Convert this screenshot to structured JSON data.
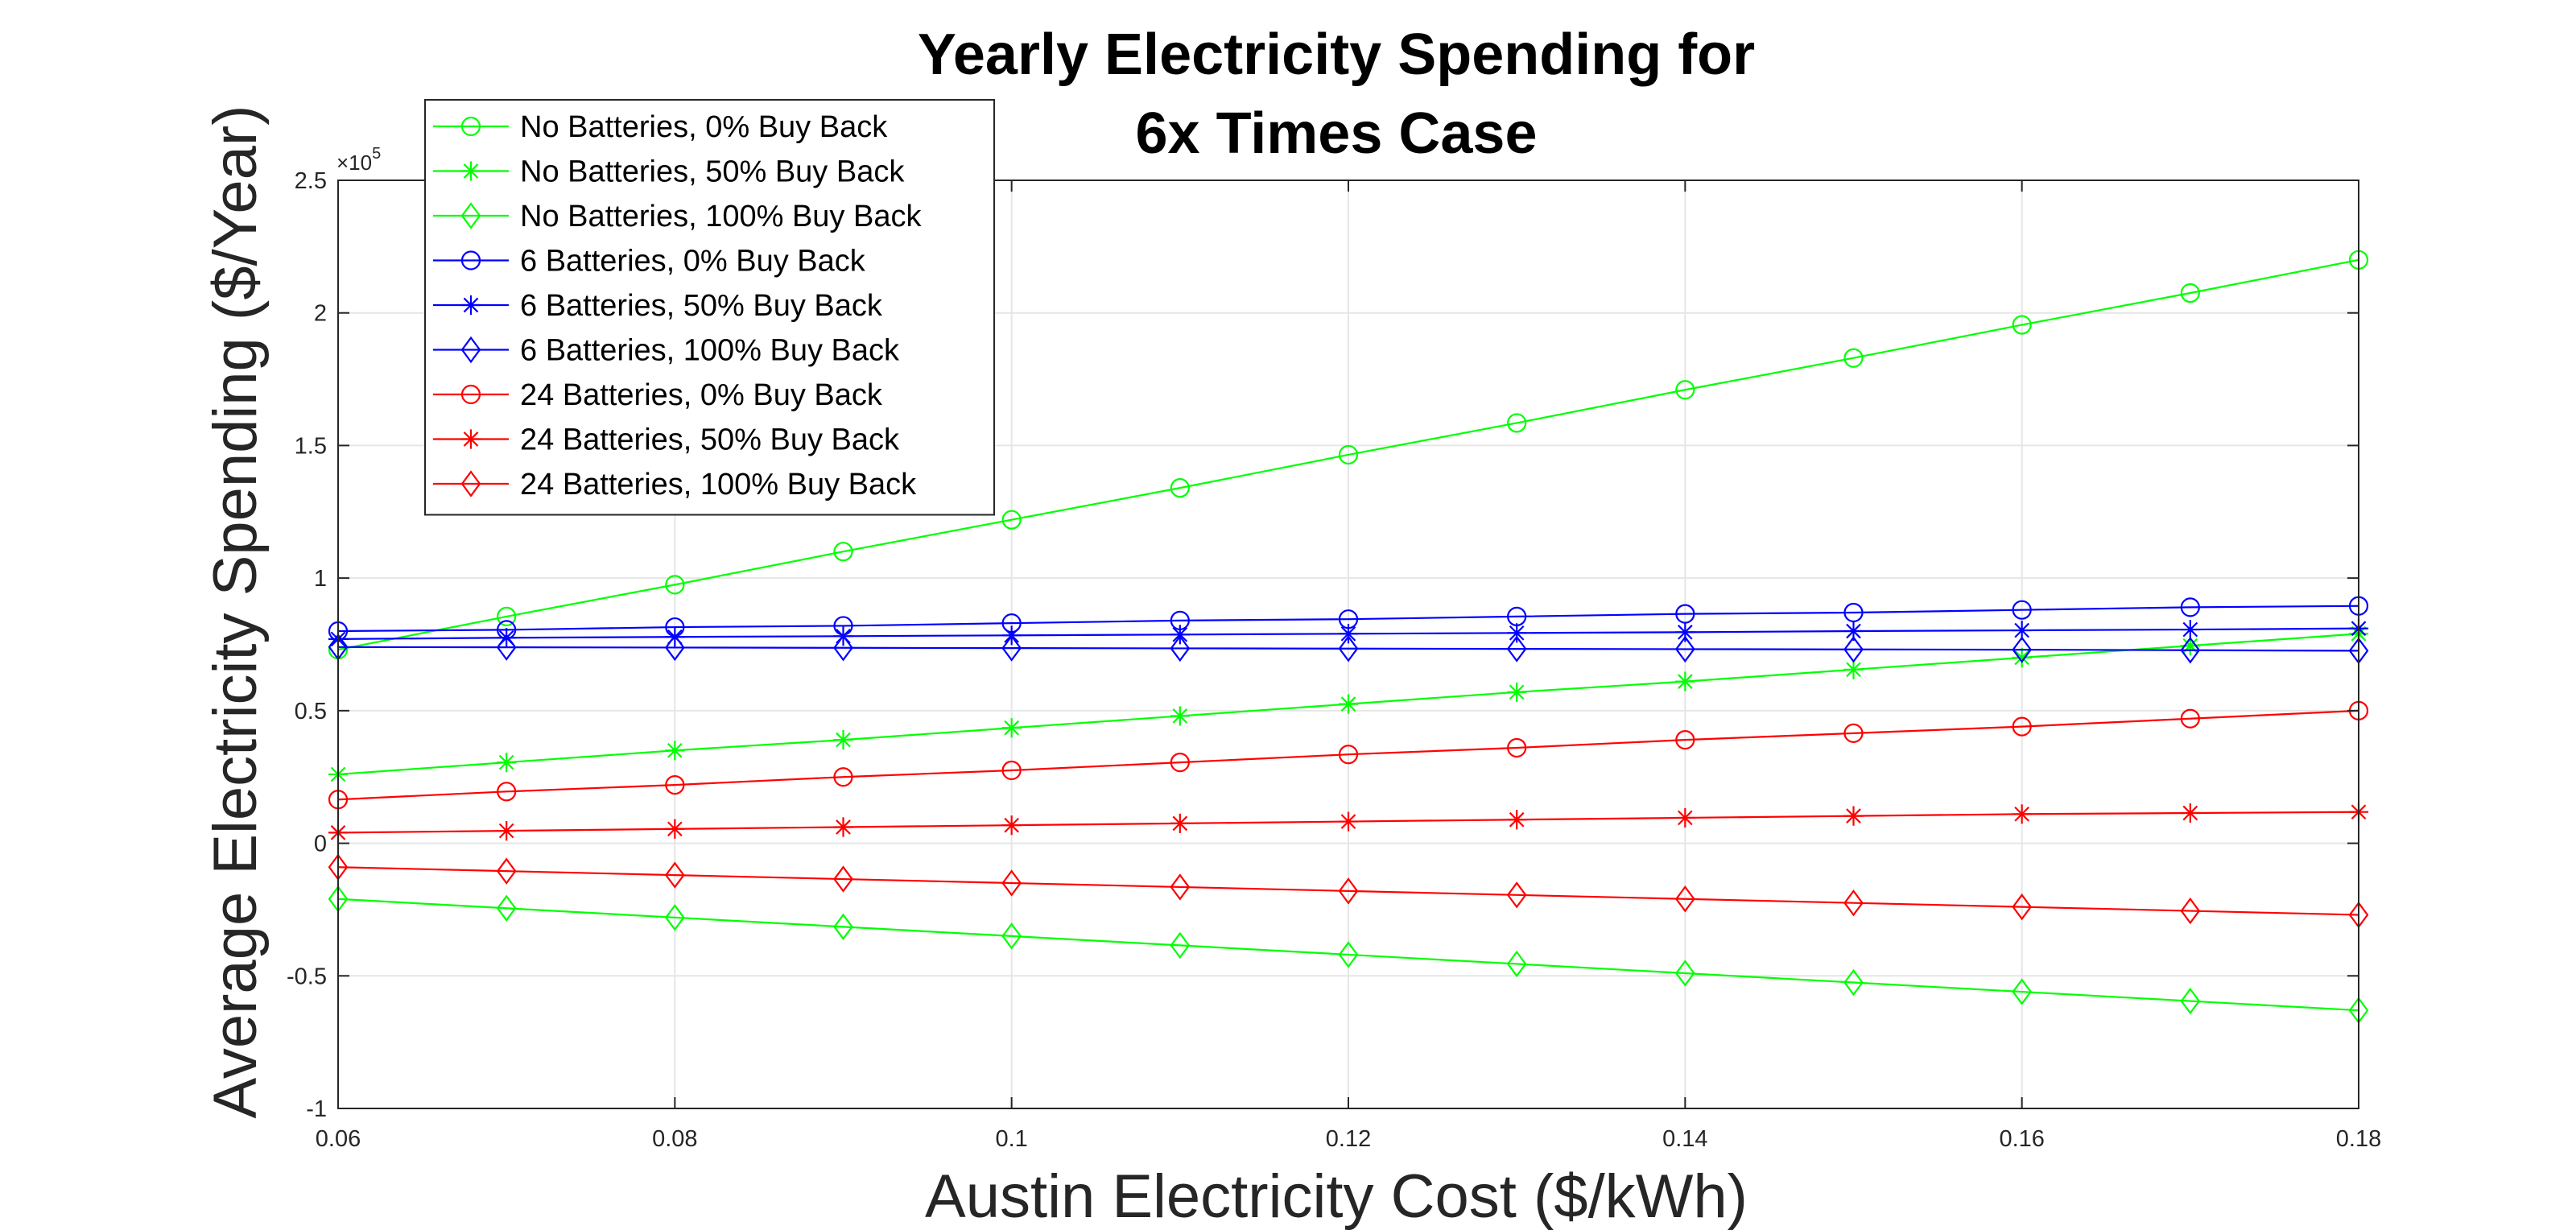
{
  "chart_data": {
    "type": "line",
    "title": [
      "Yearly Electricity Spending for",
      "6x Times Case"
    ],
    "xlabel": "Austin Electricity Cost ($/kWh)",
    "ylabel": "Average Electricity Spending ($/Year)",
    "y_exponent_label": "×10",
    "y_exponent_power": "5",
    "xlim": [
      0.06,
      0.18
    ],
    "ylim": [
      -1,
      2.5
    ],
    "x_ticks": [
      "0.06",
      "0.08",
      "0.1",
      "0.12",
      "0.14",
      "0.16",
      "0.18"
    ],
    "y_ticks": [
      "-1",
      "-0.5",
      "0",
      "0.5",
      "1",
      "1.5",
      "2",
      "2.5"
    ],
    "grid": true,
    "legend_position": "top-left",
    "x": [
      0.06,
      0.07,
      0.08,
      0.09,
      0.1,
      0.11,
      0.12,
      0.13,
      0.14,
      0.15,
      0.16,
      0.17,
      0.18
    ],
    "series": [
      {
        "name": "No Batteries, 0% Buy Back",
        "color": "#00ff00",
        "marker": "circle",
        "values": [
          0.73,
          0.855,
          0.975,
          1.1,
          1.22,
          1.34,
          1.465,
          1.585,
          1.71,
          1.83,
          1.955,
          2.075,
          2.2
        ]
      },
      {
        "name": "No Batteries, 50% Buy Back",
        "color": "#00ff00",
        "marker": "star",
        "values": [
          0.26,
          0.305,
          0.35,
          0.39,
          0.435,
          0.48,
          0.525,
          0.57,
          0.61,
          0.655,
          0.7,
          0.745,
          0.79
        ]
      },
      {
        "name": "No Batteries, 100% Buy Back",
        "color": "#00ff00",
        "marker": "diamond",
        "values": [
          -0.21,
          -0.245,
          -0.28,
          -0.315,
          -0.35,
          -0.385,
          -0.42,
          -0.455,
          -0.49,
          -0.525,
          -0.56,
          -0.595,
          -0.63
        ]
      },
      {
        "name": "6 Batteries, 0% Buy Back",
        "color": "#0000ff",
        "marker": "circle",
        "values": [
          0.8,
          0.805,
          0.815,
          0.82,
          0.83,
          0.84,
          0.845,
          0.855,
          0.865,
          0.87,
          0.88,
          0.89,
          0.895
        ]
      },
      {
        "name": "6 Batteries, 50% Buy Back",
        "color": "#0000ff",
        "marker": "star",
        "values": [
          0.77,
          0.775,
          0.778,
          0.781,
          0.784,
          0.787,
          0.79,
          0.793,
          0.796,
          0.8,
          0.803,
          0.806,
          0.81
        ]
      },
      {
        "name": "6 Batteries, 100% Buy Back",
        "color": "#0000ff",
        "marker": "diamond",
        "values": [
          0.74,
          0.739,
          0.738,
          0.737,
          0.736,
          0.735,
          0.734,
          0.733,
          0.732,
          0.731,
          0.73,
          0.728,
          0.726
        ]
      },
      {
        "name": "24 Batteries, 0% Buy Back",
        "color": "#ff0000",
        "marker": "circle",
        "values": [
          0.165,
          0.195,
          0.22,
          0.25,
          0.275,
          0.305,
          0.335,
          0.36,
          0.39,
          0.415,
          0.44,
          0.47,
          0.5
        ]
      },
      {
        "name": "24 Batteries, 50% Buy Back",
        "color": "#ff0000",
        "marker": "star",
        "values": [
          0.04,
          0.047,
          0.054,
          0.061,
          0.068,
          0.075,
          0.082,
          0.089,
          0.096,
          0.103,
          0.11,
          0.114,
          0.118
        ]
      },
      {
        "name": "24 Batteries, 100% Buy Back",
        "color": "#ff0000",
        "marker": "diamond",
        "values": [
          -0.09,
          -0.105,
          -0.12,
          -0.135,
          -0.15,
          -0.165,
          -0.18,
          -0.195,
          -0.21,
          -0.225,
          -0.24,
          -0.255,
          -0.27
        ]
      }
    ]
  }
}
